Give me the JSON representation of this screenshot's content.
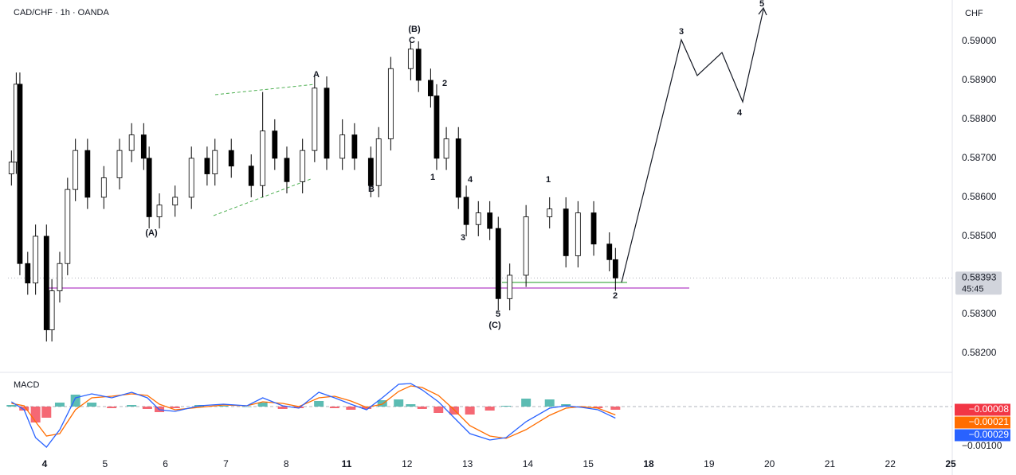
{
  "chart_data": {
    "type": "candlestick",
    "title": "CAD/CHF · 1h · OANDA",
    "currency": "CHF",
    "grid": false,
    "up_color": "#ffffff",
    "down_color": "#000000",
    "wick_color": "#000000",
    "xlim": [
      -0.607,
      15.026
    ],
    "xticks": [
      {
        "value": 0,
        "label": "4",
        "bold": true
      },
      {
        "value": 1,
        "label": "5"
      },
      {
        "value": 2,
        "label": "6"
      },
      {
        "value": 3,
        "label": "7"
      },
      {
        "value": 4,
        "label": "8"
      },
      {
        "value": 5,
        "label": "11",
        "bold": true
      },
      {
        "value": 6,
        "label": "12"
      },
      {
        "value": 7,
        "label": "13"
      },
      {
        "value": 8,
        "label": "14"
      },
      {
        "value": 9,
        "label": "15"
      },
      {
        "value": 10,
        "label": "18",
        "bold": true
      },
      {
        "value": 11,
        "label": "19"
      },
      {
        "value": 12,
        "label": "20"
      },
      {
        "value": 13,
        "label": "21"
      },
      {
        "value": 14,
        "label": "22"
      },
      {
        "value": 15,
        "label": "25",
        "bold": true
      }
    ],
    "ylim": [
      0.58157,
      0.59106
    ],
    "yticks": [
      {
        "value": 0.582,
        "label": "0.58200"
      },
      {
        "value": 0.583,
        "label": "0.58300"
      },
      {
        "value": 0.585,
        "label": "0.58500"
      },
      {
        "value": 0.586,
        "label": "0.58600"
      },
      {
        "value": 0.587,
        "label": "0.58700"
      },
      {
        "value": 0.588,
        "label": "0.58800"
      },
      {
        "value": 0.589,
        "label": "0.58900"
      },
      {
        "value": 0.59,
        "label": "0.59000"
      }
    ],
    "last_price": 0.58393,
    "countdown": "45:45",
    "candles": {
      "x": [
        -0.55,
        -0.47,
        -0.41,
        -0.28,
        -0.15,
        0.03,
        0.12,
        0.25,
        0.38,
        0.51,
        0.71,
        0.98,
        1.24,
        1.44,
        1.64,
        1.73,
        1.9,
        2.16,
        2.43,
        2.69,
        2.82,
        3.09,
        3.42,
        3.61,
        3.81,
        4.01,
        4.27,
        4.47,
        4.67,
        4.93,
        5.13,
        5.4,
        5.53,
        5.73,
        6.06,
        6.19,
        6.39,
        6.49,
        6.65,
        6.85,
        6.98,
        7.18,
        7.37,
        7.51,
        7.7,
        7.97,
        8.36,
        8.63,
        8.83,
        9.09,
        9.35,
        9.45
      ],
      "open": [
        0.5866,
        0.5869,
        0.5889,
        0.5843,
        0.5838,
        0.585,
        0.5826,
        0.5836,
        0.5843,
        0.5862,
        0.5872,
        0.586,
        0.5865,
        0.5872,
        0.5876,
        0.587,
        0.5855,
        0.5858,
        0.586,
        0.587,
        0.5866,
        0.5872,
        0.5868,
        0.5863,
        0.5877,
        0.587,
        0.5864,
        0.5872,
        0.5888,
        0.587,
        0.5876,
        0.587,
        0.5863,
        0.5875,
        0.5893,
        0.5898,
        0.589,
        0.5886,
        0.587,
        0.5875,
        0.586,
        0.5853,
        0.5856,
        0.5852,
        0.5834,
        0.584,
        0.5855,
        0.5857,
        0.5845,
        0.5856,
        0.5848,
        0.5844
      ],
      "high": [
        0.5872,
        0.5892,
        0.5892,
        0.5846,
        0.5853,
        0.5853,
        0.5839,
        0.5846,
        0.5865,
        0.5875,
        0.5875,
        0.5868,
        0.5875,
        0.5879,
        0.5879,
        0.5873,
        0.5861,
        0.5863,
        0.5873,
        0.5873,
        0.5875,
        0.5875,
        0.5871,
        0.5887,
        0.588,
        0.5873,
        0.5875,
        0.5891,
        0.5891,
        0.588,
        0.5879,
        0.5873,
        0.5878,
        0.5896,
        0.59,
        0.59,
        0.5893,
        0.5889,
        0.5878,
        0.5878,
        0.5863,
        0.5859,
        0.5859,
        0.5855,
        0.5843,
        0.5858,
        0.586,
        0.586,
        0.5859,
        0.5859,
        0.5851,
        0.5847
      ],
      "low": [
        0.5863,
        0.5866,
        0.584,
        0.5835,
        0.5835,
        0.5823,
        0.5823,
        0.5833,
        0.584,
        0.5859,
        0.5857,
        0.5857,
        0.5862,
        0.5869,
        0.5867,
        0.5852,
        0.5852,
        0.5855,
        0.5857,
        0.5863,
        0.5863,
        0.5865,
        0.586,
        0.586,
        0.5867,
        0.5861,
        0.5861,
        0.5869,
        0.5867,
        0.5867,
        0.5867,
        0.586,
        0.586,
        0.5872,
        0.589,
        0.5887,
        0.5883,
        0.5867,
        0.5867,
        0.5857,
        0.585,
        0.585,
        0.5849,
        0.5831,
        0.5831,
        0.5837,
        0.5852,
        0.5842,
        0.5842,
        0.5845,
        0.5841,
        0.5836
      ],
      "close": [
        0.5869,
        0.5889,
        0.5843,
        0.5838,
        0.585,
        0.5826,
        0.5836,
        0.5843,
        0.5862,
        0.5872,
        0.586,
        0.5865,
        0.5872,
        0.5876,
        0.587,
        0.5855,
        0.5858,
        0.586,
        0.587,
        0.5866,
        0.5872,
        0.5868,
        0.5863,
        0.5877,
        0.587,
        0.5864,
        0.5872,
        0.5888,
        0.587,
        0.5876,
        0.587,
        0.5863,
        0.5875,
        0.5893,
        0.5898,
        0.589,
        0.5886,
        0.587,
        0.5875,
        0.586,
        0.5853,
        0.5856,
        0.5852,
        0.5834,
        0.584,
        0.5855,
        0.5857,
        0.5845,
        0.5856,
        0.5848,
        0.5844,
        0.58393
      ]
    },
    "wave_labels": [
      {
        "text": "(A)",
        "color": "#f23645"
      },
      {
        "text": "A",
        "color": "#f23645"
      },
      {
        "text": "B",
        "color": "#f23645"
      },
      {
        "text": "(B)",
        "color": "#f23645"
      },
      {
        "text": "C",
        "color": "#f23645"
      },
      {
        "text": "2",
        "color": "#131722"
      },
      {
        "text": "1",
        "color": "#131722"
      },
      {
        "text": "4",
        "color": "#131722"
      },
      {
        "text": "3",
        "color": "#131722"
      },
      {
        "text": "5",
        "color": "#131722"
      },
      {
        "text": "(C)",
        "color": "#f23645"
      },
      {
        "text": "1",
        "color": "#131722"
      },
      {
        "text": "2",
        "color": "#131722"
      },
      {
        "text": "3",
        "color": "#131722"
      },
      {
        "text": "4",
        "color": "#131722"
      },
      {
        "text": "5",
        "color": "#131722"
      }
    ],
    "macd": {
      "title": "MACD",
      "ylim": [
        -0.00118,
        0.00082
      ],
      "yticks": [
        {
          "value": -0.001,
          "label": "−0.00100"
        }
      ],
      "x": [
        -0.55,
        -0.34,
        -0.15,
        0.03,
        0.25,
        0.51,
        0.78,
        1.11,
        1.44,
        1.7,
        1.9,
        2.16,
        2.56,
        2.96,
        3.35,
        3.61,
        3.94,
        4.21,
        4.54,
        4.8,
        5.07,
        5.33,
        5.59,
        5.86,
        6.06,
        6.25,
        6.52,
        6.78,
        7.04,
        7.37,
        7.64,
        7.97,
        8.36,
        8.63,
        8.89,
        9.16,
        9.45
      ],
      "series": [
        {
          "name": "Histogram",
          "color": "#f23645",
          "up_color": "#26a69a",
          "label": "−0.00008",
          "values": [
            4e-05,
            -0.0001,
            -0.0004,
            -0.00028,
            0.0001,
            0.0003,
            0.0001,
            -4e-05,
            4e-05,
            -6e-05,
            -0.00014,
            -4e-05,
            4e-05,
            2e-05,
            0.0,
            0.0001,
            -6e-05,
            -4e-05,
            0.00014,
            -4e-05,
            -8e-05,
            -6e-05,
            0.00016,
            0.00018,
            6e-05,
            -6e-05,
            -0.00016,
            -0.0002,
            -0.0002,
            -0.0001,
            2e-05,
            0.0002,
            0.00018,
            6e-05,
            -2e-05,
            -4e-05,
            -8e-05
          ]
        },
        {
          "name": "Signal",
          "color": "#ff6d00",
          "label": "−0.00021",
          "values": [
            8e-05,
            2e-05,
            -0.00038,
            -0.00074,
            -0.00068,
            -8e-05,
            0.00022,
            0.00026,
            0.00032,
            0.00028,
            6e-05,
            -8e-05,
            -2e-05,
            4e-05,
            2e-05,
            0.00012,
            8e-05,
            0.0,
            0.00022,
            0.00026,
            0.00014,
            -2e-05,
            6e-05,
            0.00038,
            0.00052,
            0.00048,
            0.00028,
            -8e-05,
            -0.00048,
            -0.00074,
            -0.0008,
            -0.00058,
            -0.00022,
            -4e-05,
            0.0,
            -4e-05,
            -0.00021
          ]
        },
        {
          "name": "MACD",
          "color": "#2962ff",
          "label": "−0.00029",
          "values": [
            0.00012,
            -8e-05,
            -0.00078,
            -0.00102,
            -0.00058,
            0.00022,
            0.00032,
            0.00022,
            0.00036,
            0.00022,
            -8e-05,
            -0.00012,
            2e-05,
            6e-05,
            2e-05,
            0.00022,
            2e-05,
            -4e-05,
            0.00036,
            0.00022,
            6e-05,
            -8e-05,
            0.00022,
            0.00056,
            0.00058,
            0.00042,
            0.00012,
            -0.00028,
            -0.00068,
            -0.00084,
            -0.00078,
            -0.00038,
            -4e-05,
            2e-05,
            -2e-05,
            -8e-05,
            -0.00029
          ]
        }
      ]
    }
  }
}
